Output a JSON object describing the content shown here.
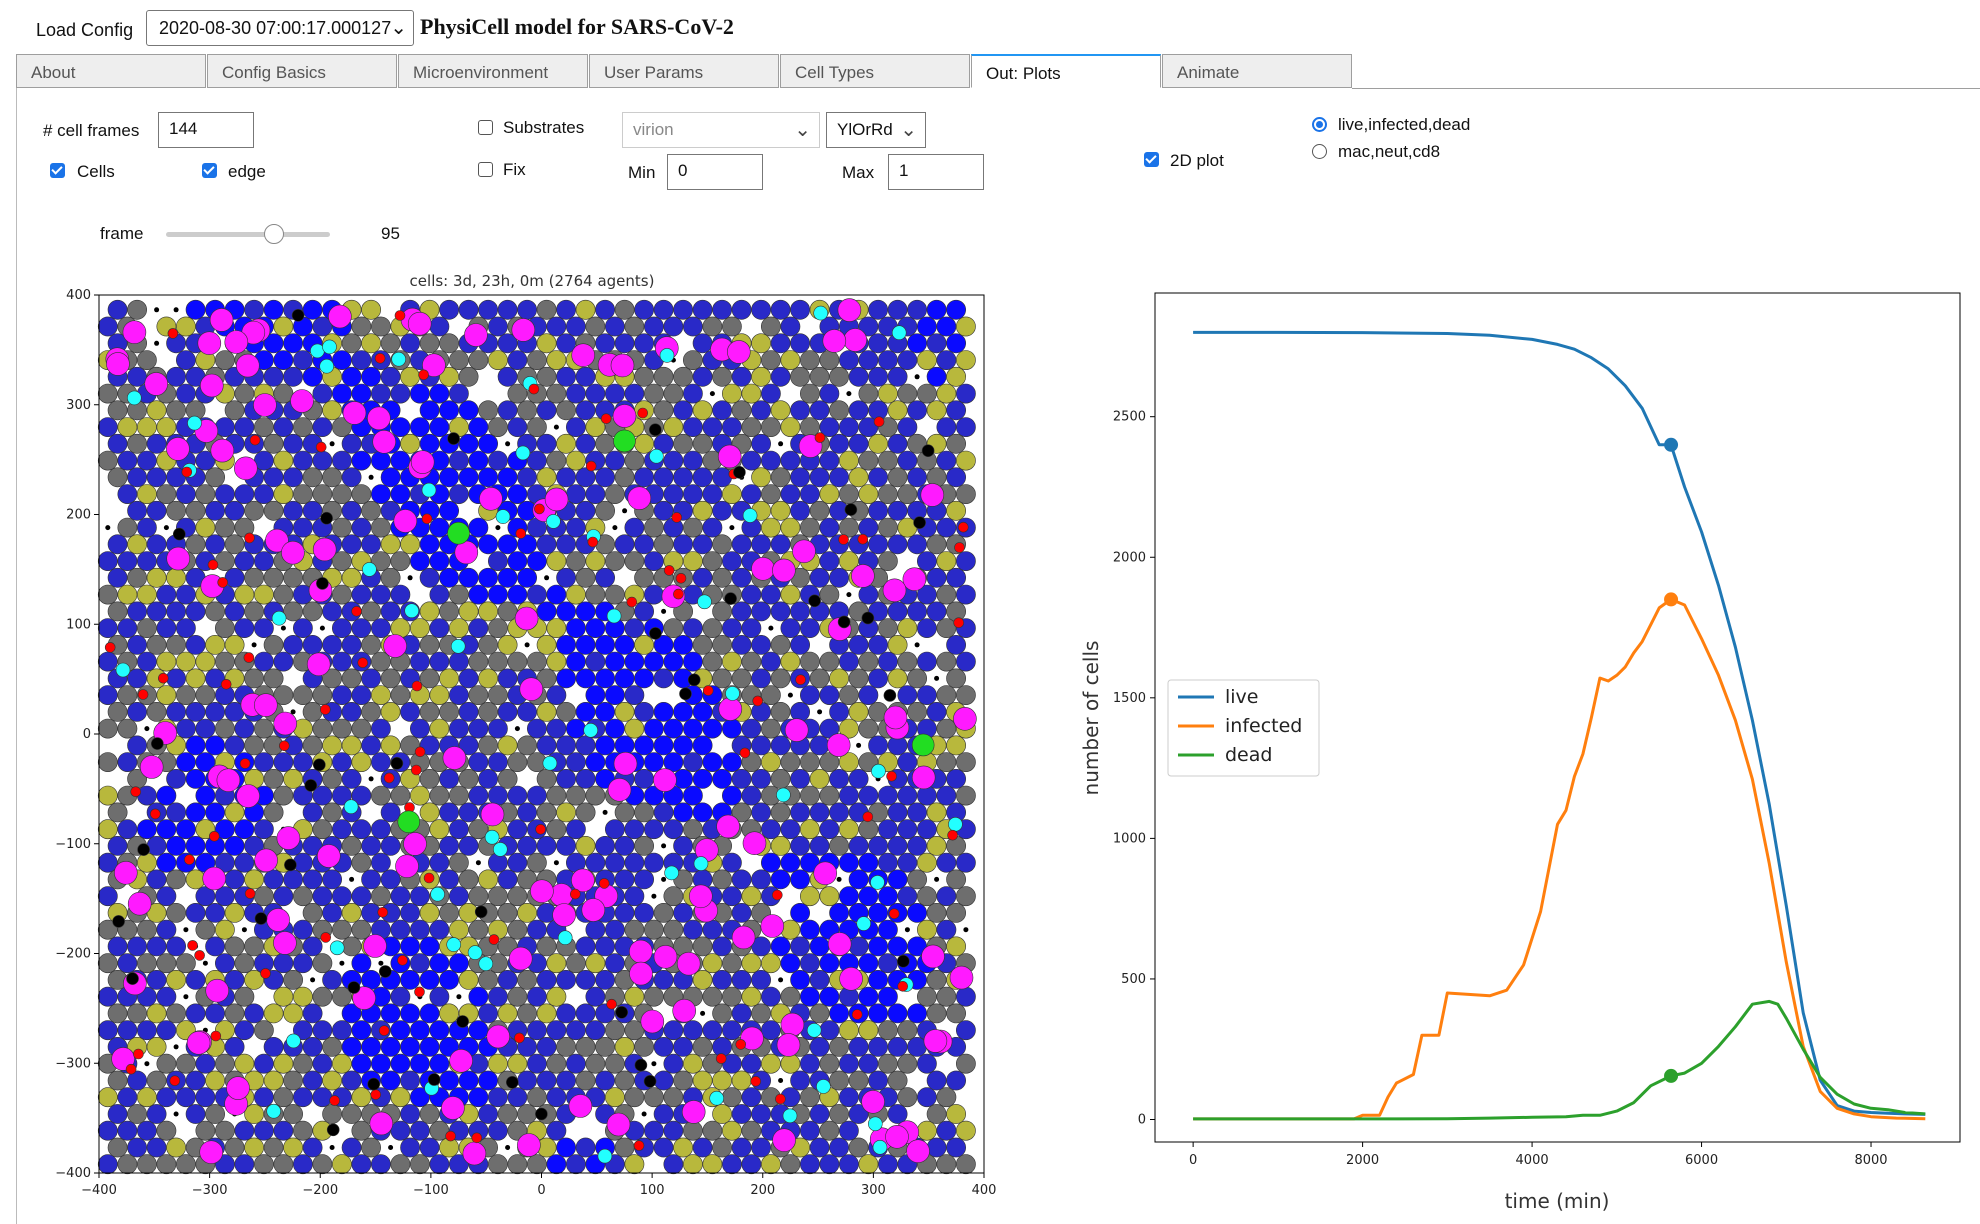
{
  "header": {
    "load_label": "Load Config",
    "config_value": "2020-08-30 07:00:17.000127",
    "app_title": "PhysiCell model for SARS-CoV-2"
  },
  "tabs": [
    {
      "label": "About",
      "active": false
    },
    {
      "label": "Config Basics",
      "active": false
    },
    {
      "label": "Microenvironment",
      "active": false
    },
    {
      "label": "User Params",
      "active": false
    },
    {
      "label": "Cell Types",
      "active": false
    },
    {
      "label": "Out: Plots",
      "active": true
    },
    {
      "label": "Animate",
      "active": false
    }
  ],
  "controls": {
    "cell_frames_label": "# cell frames",
    "cell_frames_value": "144",
    "cells_label": "Cells",
    "cells_checked": true,
    "edge_label": "edge",
    "edge_checked": true,
    "substrates_label": "Substrates",
    "substrates_checked": false,
    "fix_label": "Fix",
    "fix_checked": false,
    "substrate_select": "virion",
    "colormap_select": "YlOrRd",
    "min_label": "Min",
    "min_value": "0",
    "max_label": "Max",
    "max_value": "1",
    "plot2d_label": "2D plot",
    "plot2d_checked": true,
    "radio_options": [
      "live,infected,dead",
      "mac,neut,cd8"
    ],
    "radio_selected": 0,
    "frame_label": "frame",
    "frame_value": "95",
    "frame_max": 144
  },
  "chart_data": [
    {
      "type": "scatter",
      "title": "cells: 3d, 23h, 0m (2764 agents)",
      "xlim": [
        -400,
        400
      ],
      "ylim": [
        -400,
        400
      ],
      "xticks": [
        -400,
        -300,
        -200,
        -100,
        0,
        100,
        200,
        300,
        400
      ],
      "yticks": [
        -400,
        -300,
        -200,
        -100,
        0,
        100,
        200,
        300,
        400
      ],
      "xtick_labels": [
        "−400",
        "−300",
        "−200",
        "−100",
        "0",
        "100",
        "200",
        "300",
        "400"
      ],
      "ytick_labels": [
        "−400",
        "−300",
        "−200",
        "−100",
        "0",
        "100",
        "200",
        "300",
        "400"
      ],
      "agent_count": 2764,
      "cell_colors": {
        "epithelial_blue": "#2929c8",
        "bright_blue": "#0a0aff",
        "gray": "#6e6e6e",
        "olive": "#b8b83c",
        "magenta": "#ff1aff",
        "cyan": "#22ffff",
        "red": "#ff0000",
        "black": "#000000",
        "green": "#22dd22"
      },
      "highlighted_cells": [
        {
          "x": -75,
          "y": 183,
          "color": "#22dd22"
        },
        {
          "x": 75,
          "y": 267,
          "color": "#22dd22"
        },
        {
          "x": -120,
          "y": -80,
          "color": "#22dd22"
        },
        {
          "x": 345,
          "y": -10,
          "color": "#22dd22"
        }
      ]
    },
    {
      "type": "line",
      "xlabel": "time (min)",
      "ylabel": "number of cells",
      "xlim": [
        -450,
        9050
      ],
      "ylim": [
        -80,
        2940
      ],
      "xticks": [
        0,
        2000,
        4000,
        6000,
        8000
      ],
      "yticks": [
        0,
        500,
        1000,
        1500,
        2000,
        2500
      ],
      "legend_position": "center-left",
      "series": [
        {
          "name": "live",
          "color": "#1f77b4",
          "marker": {
            "x": 5640,
            "y": 2400
          },
          "x": [
            0,
            1000,
            2000,
            3000,
            3500,
            4000,
            4300,
            4500,
            4700,
            4900,
            5100,
            5300,
            5500,
            5640,
            5800,
            6000,
            6200,
            6400,
            6600,
            6800,
            7000,
            7200,
            7400,
            7600,
            7800,
            8000,
            8200,
            8400,
            8640
          ],
          "y": [
            2800,
            2800,
            2799,
            2796,
            2790,
            2775,
            2757,
            2740,
            2710,
            2670,
            2610,
            2530,
            2400,
            2400,
            2250,
            2090,
            1900,
            1680,
            1420,
            1120,
            760,
            380,
            140,
            50,
            30,
            25,
            22,
            20,
            18
          ]
        },
        {
          "name": "infected",
          "color": "#ff7f0e",
          "marker": {
            "x": 5640,
            "y": 1850
          },
          "x": [
            0,
            1900,
            2000,
            2200,
            2300,
            2400,
            2600,
            2700,
            2900,
            3000,
            3500,
            3700,
            3900,
            4100,
            4300,
            4400,
            4500,
            4600,
            4700,
            4800,
            4900,
            5000,
            5100,
            5200,
            5300,
            5500,
            5640,
            5800,
            6000,
            6200,
            6400,
            6600,
            6800,
            7000,
            7200,
            7400,
            7600,
            7800,
            8000,
            8300,
            8640
          ],
          "y": [
            2,
            2,
            15,
            15,
            80,
            130,
            160,
            300,
            300,
            450,
            440,
            460,
            550,
            740,
            1050,
            1100,
            1220,
            1300,
            1430,
            1570,
            1560,
            1580,
            1610,
            1660,
            1700,
            1820,
            1850,
            1830,
            1710,
            1580,
            1420,
            1210,
            910,
            560,
            260,
            100,
            40,
            20,
            10,
            5,
            3
          ]
        },
        {
          "name": "dead",
          "color": "#2ca02c",
          "marker": {
            "x": 5640,
            "y": 155
          },
          "x": [
            0,
            2000,
            3000,
            3500,
            4000,
            4400,
            4600,
            4800,
            5000,
            5200,
            5400,
            5640,
            5800,
            6000,
            6200,
            6400,
            6600,
            6800,
            6900,
            7000,
            7200,
            7400,
            7600,
            7800,
            8000,
            8200,
            8400,
            8640
          ],
          "y": [
            2,
            2,
            3,
            5,
            8,
            10,
            15,
            15,
            30,
            60,
            120,
            155,
            165,
            200,
            260,
            330,
            410,
            420,
            410,
            360,
            250,
            150,
            90,
            55,
            40,
            35,
            25,
            20
          ]
        }
      ]
    }
  ]
}
